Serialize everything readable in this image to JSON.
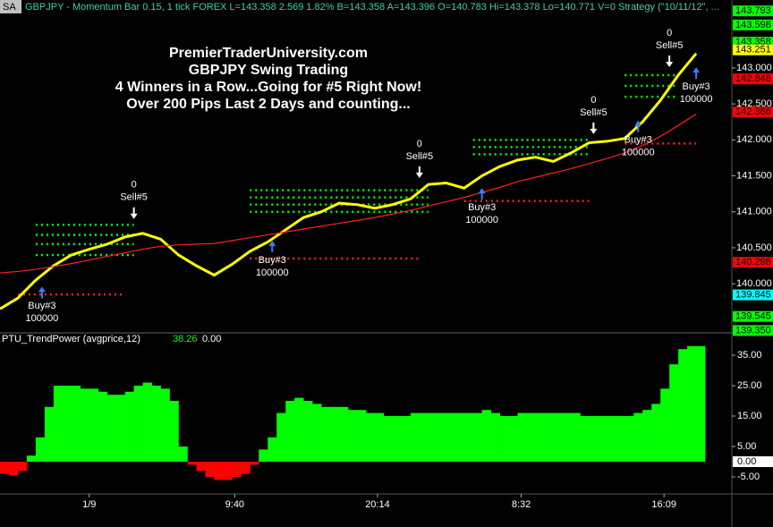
{
  "header": {
    "badge": "SA",
    "title": "GBPJPY - Momentum Bar 0.15, 1 tick  FOREX  L=143.358  2.569  1.82%  B=143.358  A=143.396  O=140.783  Hi=143.378  Lo=140.771  V=0  Strategy (\"10/11/12\", ..."
  },
  "overlay": [
    "PremierTraderUniversity.com",
    "GBPJPY Swing Trading",
    "4 Winners in a Row...Going for #5 Right Now!",
    "Over 200 Pips Last 2 Days and counting..."
  ],
  "chart_data": [
    {
      "type": "line",
      "x": [
        0,
        1,
        2,
        3,
        4,
        5,
        6,
        7,
        8,
        9,
        10,
        11,
        12,
        13,
        14,
        15,
        16,
        17,
        18,
        19,
        20,
        21,
        22,
        23,
        24,
        25,
        26,
        27,
        28,
        29,
        30,
        31,
        32,
        33,
        34,
        35,
        36,
        37,
        38,
        39
      ],
      "series": [
        {
          "color": "#ffff00",
          "values": [
            139.65,
            139.8,
            140.05,
            140.25,
            140.4,
            140.48,
            140.55,
            140.65,
            140.7,
            140.62,
            140.4,
            140.25,
            140.12,
            140.27,
            140.45,
            140.58,
            140.75,
            140.92,
            141.0,
            141.12,
            141.1,
            141.05,
            141.1,
            141.18,
            141.38,
            141.4,
            141.33,
            141.5,
            141.63,
            141.72,
            141.76,
            141.7,
            141.82,
            141.96,
            141.98,
            142.02,
            142.25,
            142.55,
            142.9,
            143.2
          ]
        },
        {
          "color": "#ff2020",
          "values": [
            140.15,
            140.17,
            140.2,
            140.24,
            140.28,
            140.33,
            140.38,
            140.43,
            140.48,
            140.52,
            140.54,
            140.55,
            140.56,
            140.6,
            140.64,
            140.68,
            140.72,
            140.76,
            140.8,
            140.84,
            140.88,
            140.92,
            140.97,
            141.02,
            141.08,
            141.14,
            141.2,
            141.27,
            141.34,
            141.42,
            141.48,
            141.54,
            141.6,
            141.67,
            141.74,
            141.82,
            141.92,
            142.05,
            142.2,
            142.36
          ]
        }
      ],
      "xlim": [
        0,
        41
      ],
      "ylim": [
        139.28,
        143.82
      ],
      "yticks": [
        {
          "value": 140,
          "label": "140.000"
        },
        {
          "value": 140.5,
          "label": "140.500"
        },
        {
          "value": 141,
          "label": "141.000"
        },
        {
          "value": 141.5,
          "label": "141.500"
        },
        {
          "value": 142,
          "label": "142.000"
        },
        {
          "value": 142.5,
          "label": "142.500"
        },
        {
          "value": 143,
          "label": "143.000"
        }
      ],
      "levels": [
        {
          "value": 140.82,
          "from": 2,
          "to": 7.5,
          "color": "#00ff00"
        },
        {
          "value": 140.68,
          "from": 2,
          "to": 7.5,
          "color": "#00ff00"
        },
        {
          "value": 140.55,
          "from": 2,
          "to": 7.5,
          "color": "#00ff00"
        },
        {
          "value": 140.4,
          "from": 2,
          "to": 7.5,
          "color": "#00ff00"
        },
        {
          "value": 141.3,
          "from": 14,
          "to": 24,
          "color": "#00ff00"
        },
        {
          "value": 141.2,
          "from": 14,
          "to": 24,
          "color": "#00ff00"
        },
        {
          "value": 141.1,
          "from": 14,
          "to": 24,
          "color": "#00ff00"
        },
        {
          "value": 141.0,
          "from": 14,
          "to": 24,
          "color": "#00ff00"
        },
        {
          "value": 142.0,
          "from": 26.5,
          "to": 33,
          "color": "#00ff00"
        },
        {
          "value": 141.9,
          "from": 26.5,
          "to": 33,
          "color": "#00ff00"
        },
        {
          "value": 141.8,
          "from": 26.5,
          "to": 33,
          "color": "#00ff00"
        },
        {
          "value": 142.6,
          "from": 35,
          "to": 38,
          "color": "#00ff00"
        },
        {
          "value": 142.75,
          "from": 35,
          "to": 38,
          "color": "#00ff00"
        },
        {
          "value": 142.9,
          "from": 35,
          "to": 38,
          "color": "#00ff00"
        },
        {
          "value": 139.85,
          "from": 1,
          "to": 7,
          "color": "#ff2020"
        },
        {
          "value": 140.35,
          "from": 14,
          "to": 23.5,
          "color": "#ff2020"
        },
        {
          "value": 141.15,
          "from": 26,
          "to": 33,
          "color": "#ff2020"
        },
        {
          "value": 141.95,
          "from": 35,
          "to": 39,
          "color": "#ff2020"
        }
      ],
      "signals": [
        {
          "label": "Buy#3",
          "size": 100000,
          "x": 2.35,
          "price": 139.96
        },
        {
          "label": "Sell#5",
          "size": 0,
          "x": 7.5,
          "price": 140.9
        },
        {
          "label": "Buy#3",
          "size": 100000,
          "x": 15.25,
          "price": 140.6
        },
        {
          "label": "Sell#5",
          "size": 0,
          "x": 23.5,
          "price": 141.47
        },
        {
          "label": "Buy#3",
          "size": 100000,
          "x": 27,
          "price": 141.33
        },
        {
          "label": "Sell#5",
          "size": 0,
          "x": 33.25,
          "price": 142.08
        },
        {
          "label": "Buy#3",
          "size": 100000,
          "x": 35.75,
          "price": 142.27
        },
        {
          "label": "Sell#5",
          "size": 0,
          "x": 37.5,
          "price": 143.01
        },
        {
          "label": "Buy#3",
          "size": 100000,
          "x": 39,
          "price": 143.01
        }
      ],
      "price_markers": [
        {
          "value": 143.793,
          "label": "143.793",
          "color": "#00ff00"
        },
        {
          "value": 143.598,
          "label": "143.598",
          "color": "#00ff00"
        },
        {
          "value": 143.358,
          "label": "143.358",
          "color": "#00ff00"
        },
        {
          "value": 143.251,
          "label": "143.251",
          "color": "#ffff00"
        },
        {
          "value": 142.848,
          "label": "142.848",
          "color": "#ff0000"
        },
        {
          "value": 142.386,
          "label": "142.386",
          "color": "#ff0000"
        },
        {
          "value": 140.298,
          "label": "140.298",
          "color": "#ff0000"
        },
        {
          "value": 139.845,
          "label": "139.845",
          "color": "#00ffff"
        },
        {
          "value": 139.545,
          "label": "139.545",
          "color": "#00ff00"
        },
        {
          "value": 139.35,
          "label": "139.350",
          "color": "#00ff00"
        }
      ]
    },
    {
      "type": "bar",
      "title": "PTU_TrendPower (avgprice,12)",
      "last_values": [
        38.26,
        {
          "value": 0,
          "label": "0.00"
        }
      ],
      "x": [
        0,
        1,
        2,
        3,
        4,
        5,
        6,
        7,
        8,
        9,
        10,
        11,
        12,
        13,
        14,
        15,
        16,
        17,
        18,
        19,
        20,
        21,
        22,
        23,
        24,
        25,
        26,
        27,
        28,
        29,
        30,
        31,
        32,
        33,
        34,
        35,
        36,
        37,
        38,
        39,
        40,
        41,
        42,
        43,
        44,
        45,
        46,
        47,
        48,
        49,
        50,
        51,
        52,
        53,
        54,
        55,
        56,
        57,
        58,
        59,
        60,
        61,
        62,
        63,
        64,
        65,
        66,
        67,
        68,
        69,
        70,
        71,
        72,
        73,
        74,
        75,
        76,
        77,
        78
      ],
      "values": [
        -4,
        -4.5,
        -3,
        2,
        8,
        18,
        25,
        25,
        25,
        24,
        24,
        23,
        22,
        22,
        23,
        25,
        26,
        25,
        24,
        20,
        5,
        -1,
        -3,
        -5,
        -6,
        -6,
        -5,
        -4,
        -1,
        4,
        8,
        16,
        20,
        21,
        20,
        19,
        18,
        18,
        18,
        17,
        17,
        16,
        16,
        15,
        15,
        15,
        16,
        16,
        16,
        16,
        16,
        16,
        16,
        16,
        17,
        16,
        15,
        15,
        16,
        16,
        16,
        16,
        16,
        16,
        16,
        15,
        15,
        15,
        15,
        15,
        15,
        16,
        17,
        19,
        24,
        32,
        37,
        38,
        38
      ],
      "pos_color": "#00ff00",
      "neg_color": "#ff0000",
      "xlim": [
        0,
        82
      ],
      "ylim": [
        -10,
        40
      ],
      "yticks": [
        {
          "value": -5,
          "label": "-5.00"
        },
        {
          "value": 5,
          "label": "5.00"
        },
        {
          "value": 15,
          "label": "15.00"
        },
        {
          "value": 25,
          "label": "25.00"
        },
        {
          "value": 35,
          "label": "35.00"
        }
      ],
      "zero_marker": {
        "value": 0,
        "label": "0.00"
      },
      "xticks": [
        {
          "value": 10,
          "label": "1/9"
        },
        {
          "value": 26.3,
          "label": "9:40"
        },
        {
          "value": 42.3,
          "label": "20:14"
        },
        {
          "value": 58.4,
          "label": "8:32"
        },
        {
          "value": 74.4,
          "label": "16:09"
        }
      ]
    }
  ]
}
